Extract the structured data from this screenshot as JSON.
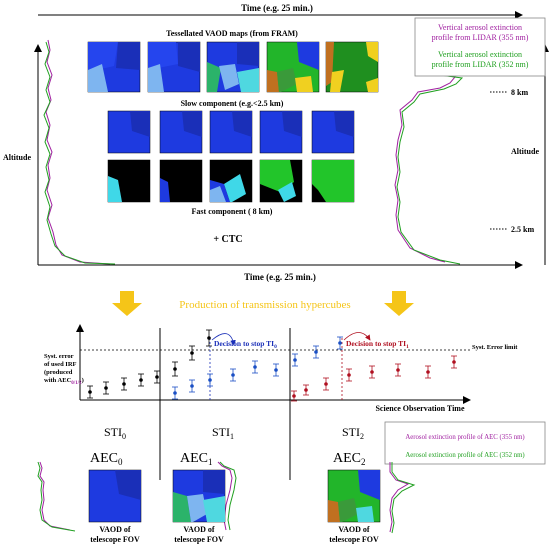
{
  "top": {
    "time_label_top": "Time (e.g. 25 min.)",
    "time_label_bottom": "Time (e.g. 25 min.)",
    "altitude_left": "Altitude",
    "altitude_right": "Altitude",
    "tess_title": "Tessellated VAOD maps (from FRAM)",
    "slow_title": "Slow component (e.g.<2.5 km)",
    "fast_title": "Fast component ( 8 km)",
    "ctc": "+ CTC",
    "km8": "8 km",
    "km25": "2.5 km",
    "legend_line1a": "Vertical aerosol extinction",
    "legend_line1b": "profile from LIDAR (355 nm)",
    "legend_line2a": "Vertical aerosol extinction",
    "legend_line2b": "profile from LIDAR (352 nm)"
  },
  "middle": {
    "production": "Production of transmission hypercubes",
    "syst_label_1": "Syst. error",
    "syst_label_2": "of used IRF",
    "syst_label_3": "(produced",
    "syst_label_4": "with AEC",
    "syst_label_sub": "0/1/2",
    "syst_label_close": ")",
    "syst_limit": "Syst. Error limit",
    "decision_0": "Decision to stop TI",
    "decision_0_sub": "0",
    "decision_1": "Decision to stop TI",
    "decision_1_sub": "1",
    "sci_obs_time": "Science Observation Time"
  },
  "bottom": {
    "sti": [
      "STI",
      "STI",
      "STI"
    ],
    "sti_sub": [
      "0",
      "1",
      "2"
    ],
    "aec": [
      "AEC",
      "AEC",
      "AEC"
    ],
    "aec_sub": [
      "0",
      "1",
      "2"
    ],
    "vaod_1": "VAOD of",
    "vaod_2": "telescope FOV",
    "legend_a": "Aerosol extinction profile of AEC (355 nm)",
    "legend_b": "Aerosol extinction profile of AEC (352 nm)"
  },
  "colors": {
    "magenta": "#a020a0",
    "green": "#20a020",
    "blue_mark": "#1a4fc4",
    "red_mark": "#b01020",
    "arrow": "#f5c518",
    "map_blue": "#1e3ae0",
    "map_dark": "#1a2fb8"
  }
}
